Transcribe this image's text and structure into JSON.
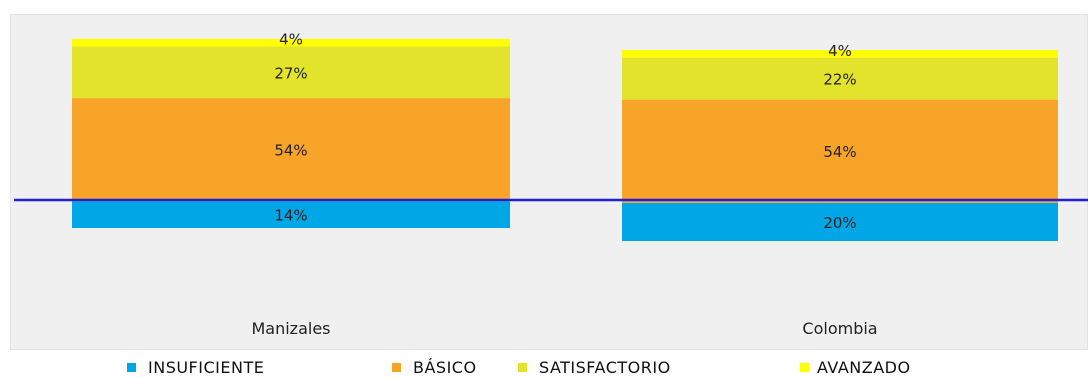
{
  "chart_data": {
    "type": "bar",
    "stacked": true,
    "categories": [
      "Manizales",
      "Colombia"
    ],
    "series": [
      {
        "name": "INSUFICIENTE",
        "color": "#00a6e6",
        "values": [
          14,
          20
        ],
        "labels": [
          "14%",
          "20%"
        ]
      },
      {
        "name": "BÁSICO",
        "color": "#f7a428",
        "values": [
          54,
          54
        ],
        "labels": [
          "54%",
          "54%"
        ]
      },
      {
        "name": "SATISFACTORIO",
        "color": "#e3e32b",
        "values": [
          27,
          22
        ],
        "labels": [
          "27%",
          "22%"
        ]
      },
      {
        "name": "AVANZADO",
        "color": "#ffff00",
        "values": [
          4,
          4
        ],
        "labels": [
          "4%",
          "4%"
        ]
      }
    ],
    "reference_line": {
      "color": "#1f1fd1"
    },
    "legend_position": "bottom",
    "grid": false
  }
}
